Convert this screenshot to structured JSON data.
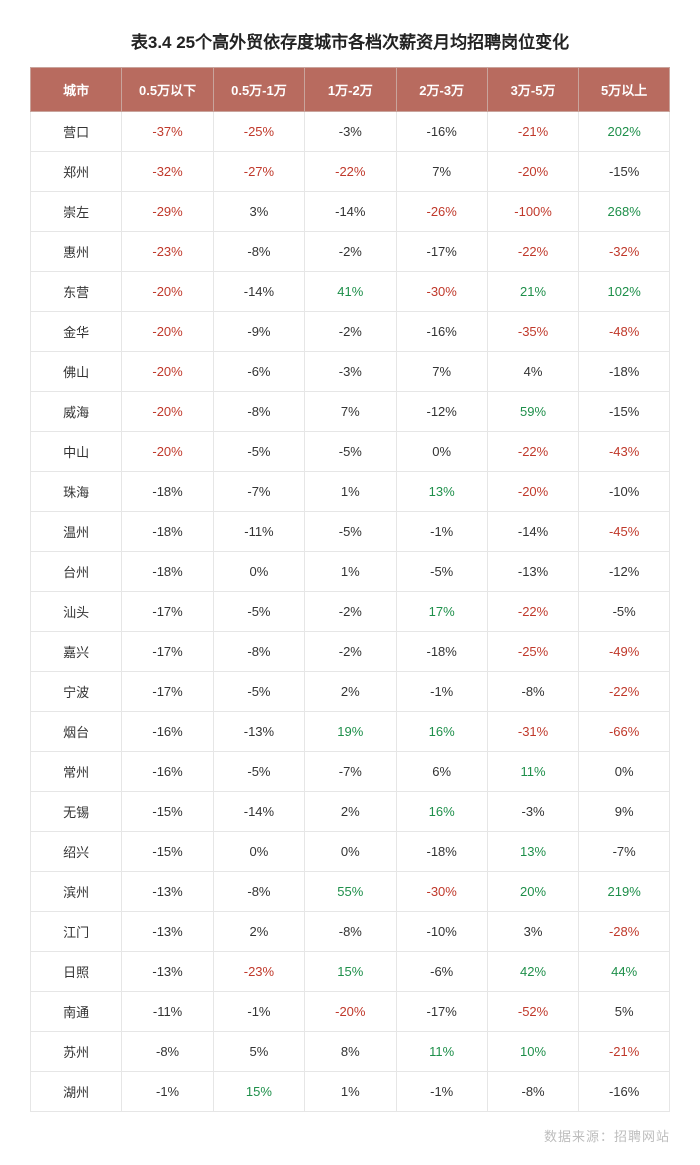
{
  "title": "表3.4 25个高外贸依存度城市各档次薪资月均招聘岗位变化",
  "source": "数据来源：招聘网站",
  "colors": {
    "header_bg": "#b86b5f",
    "header_border": "#c9a49c",
    "cell_border": "#e6e6e6",
    "text_normal": "#333333",
    "text_red": "#c0392b",
    "text_green": "#1e8f4a",
    "source_text": "#bdbdbd"
  },
  "table": {
    "columns": [
      "城市",
      "0.5万以下",
      "0.5万-1万",
      "1万-2万",
      "2万-3万",
      "3万-5万",
      "5万以上"
    ],
    "column_widths_pct": [
      14.3,
      14.3,
      14.3,
      14.3,
      14.3,
      14.3,
      14.3
    ],
    "header_fontsize": 13,
    "cell_fontsize": 13,
    "threshold_red": -20,
    "threshold_green": 10,
    "rows": [
      {
        "city": "营口",
        "v": [
          -37,
          -25,
          -3,
          -16,
          -21,
          202
        ]
      },
      {
        "city": "郑州",
        "v": [
          -32,
          -27,
          -22,
          7,
          -20,
          -15
        ]
      },
      {
        "city": "崇左",
        "v": [
          -29,
          3,
          -14,
          -26,
          -100,
          268
        ]
      },
      {
        "city": "惠州",
        "v": [
          -23,
          -8,
          -2,
          -17,
          -22,
          -32
        ]
      },
      {
        "city": "东营",
        "v": [
          -20,
          -14,
          41,
          -30,
          21,
          102
        ]
      },
      {
        "city": "金华",
        "v": [
          -20,
          -9,
          -2,
          -16,
          -35,
          -48
        ]
      },
      {
        "city": "佛山",
        "v": [
          -20,
          -6,
          -3,
          7,
          4,
          -18
        ]
      },
      {
        "city": "威海",
        "v": [
          -20,
          -8,
          7,
          -12,
          59,
          -15
        ]
      },
      {
        "city": "中山",
        "v": [
          -20,
          -5,
          -5,
          0,
          -22,
          -43
        ]
      },
      {
        "city": "珠海",
        "v": [
          -18,
          -7,
          1,
          13,
          -20,
          -10
        ]
      },
      {
        "city": "温州",
        "v": [
          -18,
          -11,
          -5,
          -1,
          -14,
          -45
        ]
      },
      {
        "city": "台州",
        "v": [
          -18,
          0,
          1,
          -5,
          -13,
          -12
        ]
      },
      {
        "city": "汕头",
        "v": [
          -17,
          -5,
          -2,
          17,
          -22,
          -5
        ]
      },
      {
        "city": "嘉兴",
        "v": [
          -17,
          -8,
          -2,
          -18,
          -25,
          -49
        ]
      },
      {
        "city": "宁波",
        "v": [
          -17,
          -5,
          2,
          -1,
          -8,
          -22
        ]
      },
      {
        "city": "烟台",
        "v": [
          -16,
          -13,
          19,
          16,
          -31,
          -66
        ]
      },
      {
        "city": "常州",
        "v": [
          -16,
          -5,
          -7,
          6,
          11,
          0
        ]
      },
      {
        "city": "无锡",
        "v": [
          -15,
          -14,
          2,
          16,
          -3,
          9
        ]
      },
      {
        "city": "绍兴",
        "v": [
          -15,
          0,
          0,
          -18,
          13,
          -7
        ]
      },
      {
        "city": "滨州",
        "v": [
          -13,
          -8,
          55,
          -30,
          20,
          219
        ]
      },
      {
        "city": "江门",
        "v": [
          -13,
          2,
          -8,
          -10,
          3,
          -28
        ]
      },
      {
        "city": "日照",
        "v": [
          -13,
          -23,
          15,
          -6,
          42,
          44
        ]
      },
      {
        "city": "南通",
        "v": [
          -11,
          -1,
          -20,
          -17,
          -52,
          5
        ]
      },
      {
        "city": "苏州",
        "v": [
          -8,
          5,
          8,
          11,
          10,
          -21
        ]
      },
      {
        "city": "湖州",
        "v": [
          -1,
          15,
          1,
          -1,
          -8,
          -16
        ]
      }
    ]
  }
}
